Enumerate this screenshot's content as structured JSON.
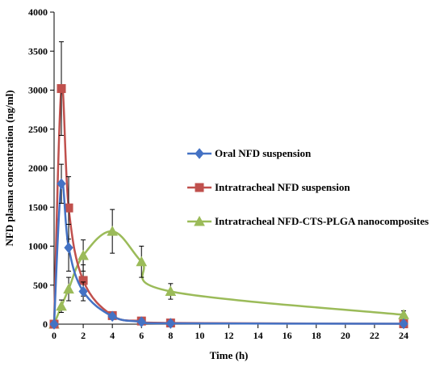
{
  "chart_data": {
    "type": "line",
    "title": "",
    "xlabel": "Time (h)",
    "ylabel": "NFD plasma concentration (ng/ml)",
    "xlim": [
      0,
      24
    ],
    "ylim": [
      0,
      4000
    ],
    "x_ticks": [
      0,
      2,
      4,
      6,
      8,
      10,
      12,
      14,
      16,
      18,
      20,
      22,
      24
    ],
    "y_ticks": [
      0,
      500,
      1000,
      1500,
      2000,
      2500,
      3000,
      3500,
      4000
    ],
    "grid": false,
    "legend_position": "center-right",
    "series": [
      {
        "name": "Oral NFD suspension",
        "color": "#4472c4",
        "marker": "diamond",
        "x": [
          0,
          0.5,
          1,
          2,
          4,
          6,
          8,
          24
        ],
        "y": [
          0,
          1800,
          980,
          420,
          100,
          30,
          10,
          5
        ],
        "error": [
          0,
          250,
          300,
          120,
          30,
          10,
          5,
          3
        ]
      },
      {
        "name": "Intratracheal NFD suspension",
        "color": "#c0504d",
        "marker": "square",
        "x": [
          0,
          0.5,
          1,
          2,
          4,
          6,
          8,
          24
        ],
        "y": [
          0,
          3020,
          1490,
          560,
          110,
          40,
          15,
          5
        ],
        "error": [
          0,
          600,
          400,
          200,
          40,
          15,
          5,
          3
        ]
      },
      {
        "name": "Intratracheal NFD-CTS-PLGA nanocomposites",
        "color": "#9bbb59",
        "marker": "triangle",
        "x": [
          0,
          0.5,
          1,
          2,
          4,
          6,
          8,
          24
        ],
        "y": [
          0,
          230,
          450,
          880,
          1190,
          800,
          420,
          120
        ],
        "error": [
          0,
          80,
          150,
          200,
          280,
          200,
          100,
          50
        ]
      }
    ]
  }
}
